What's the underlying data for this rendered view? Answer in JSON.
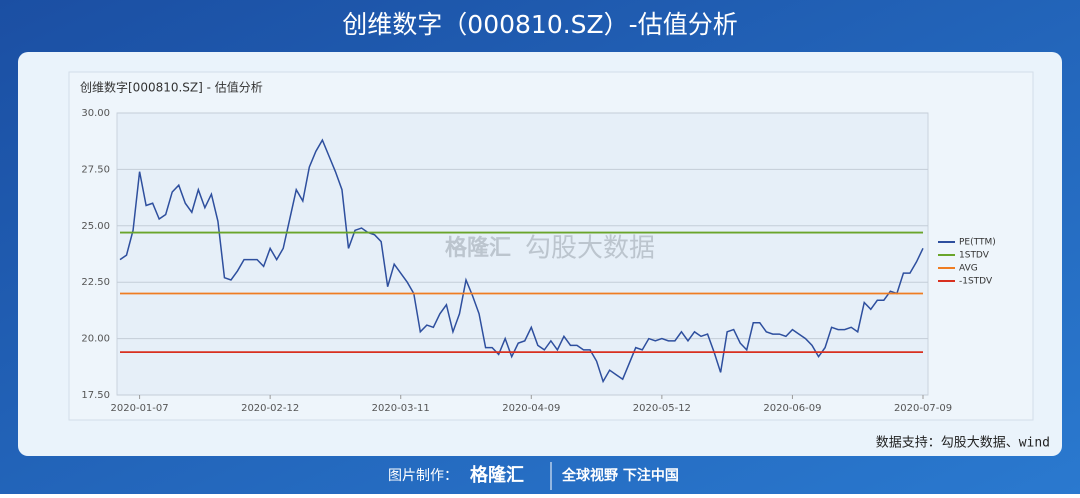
{
  "page_title": "创维数字（000810.SZ）-估值分析",
  "source": "数据支持：勾股大数据、wind",
  "watermark": [
    "格隆汇",
    "勾股大数据"
  ],
  "footer": {
    "label": "图片制作：",
    "brand": "格隆汇",
    "slogan": "全球视野 下注中国"
  },
  "chart_data": {
    "type": "line",
    "title": "创维数字[000810.SZ] - 估值分析",
    "categories": [
      null,
      null,
      null,
      "2020-01-07",
      null,
      null,
      null,
      null,
      null,
      null,
      null,
      null,
      null,
      null,
      null,
      null,
      null,
      null,
      null,
      null,
      null,
      null,
      null,
      "2020-02-12",
      null,
      null,
      null,
      null,
      null,
      null,
      null,
      null,
      null,
      null,
      null,
      null,
      null,
      null,
      null,
      null,
      null,
      null,
      null,
      "2020-03-11",
      null,
      null,
      null,
      null,
      null,
      null,
      null,
      null,
      null,
      null,
      null,
      null,
      null,
      null,
      null,
      null,
      null,
      null,
      null,
      "2020-04-09",
      null,
      null,
      null,
      null,
      null,
      null,
      null,
      null,
      null,
      null,
      null,
      null,
      null,
      null,
      null,
      null,
      null,
      null,
      null,
      "2020-05-12",
      null,
      null,
      null,
      null,
      null,
      null,
      null,
      null,
      null,
      null,
      null,
      null,
      null,
      null,
      null,
      null,
      null,
      null,
      null,
      "2020-06-09",
      null,
      null,
      null,
      null,
      null,
      null,
      null,
      null,
      null,
      null,
      null,
      null,
      null,
      null,
      null,
      null,
      null,
      null,
      null,
      "2020-07-09"
    ],
    "series": [
      {
        "name": "PE(TTM)",
        "color": "#2e4f9e",
        "values": [
          23.5,
          23.7,
          24.8,
          27.4,
          25.9,
          26.0,
          25.3,
          25.5,
          26.5,
          26.8,
          26.0,
          25.6,
          26.6,
          25.8,
          26.4,
          25.2,
          22.7,
          22.6,
          23.0,
          23.5,
          23.5,
          23.5,
          23.2,
          24.0,
          23.5,
          24.0,
          25.3,
          26.6,
          26.1,
          27.6,
          28.3,
          28.8,
          28.1,
          27.4,
          26.6,
          24.0,
          24.8,
          24.9,
          24.7,
          24.6,
          24.3,
          22.3,
          23.3,
          22.9,
          22.5,
          22.0,
          20.3,
          20.6,
          20.5,
          21.1,
          21.5,
          20.3,
          21.1,
          22.6,
          21.9,
          21.1,
          19.6,
          19.6,
          19.3,
          20.0,
          19.2,
          19.8,
          19.9,
          20.5,
          19.7,
          19.5,
          19.9,
          19.5,
          20.1,
          19.7,
          19.7,
          19.5,
          19.5,
          19.0,
          18.1,
          18.6,
          18.4,
          18.2,
          18.9,
          19.6,
          19.5,
          20.0,
          19.9,
          20.0,
          19.9,
          19.9,
          20.3,
          19.9,
          20.3,
          20.1,
          20.2,
          19.4,
          18.5,
          20.3,
          20.4,
          19.8,
          19.5,
          20.7,
          20.7,
          20.3,
          20.2,
          20.2,
          20.1,
          20.4,
          20.2,
          20.0,
          19.7,
          19.2,
          19.6,
          20.5,
          20.4,
          20.4,
          20.5,
          20.3,
          21.6,
          21.3,
          21.7,
          21.7,
          22.1,
          22.0,
          22.9,
          22.9,
          23.4,
          24.0
        ]
      },
      {
        "name": "1STDV",
        "color": "#6aa52b",
        "value": 24.7
      },
      {
        "name": "AVG",
        "color": "#ef7d22",
        "value": 22.0
      },
      {
        "name": "-1STDV",
        "color": "#d8301f",
        "value": 19.4
      }
    ],
    "ylim": [
      17.5,
      30
    ],
    "yticks": [
      {
        "value": 17.5,
        "label": "17.50"
      },
      {
        "value": 20,
        "label": "20.00"
      },
      {
        "value": 22.5,
        "label": "22.50"
      },
      {
        "value": 25,
        "label": "25.00"
      },
      {
        "value": 27.5,
        "label": "27.50"
      },
      {
        "value": 30,
        "label": "30.00"
      }
    ],
    "grid": true,
    "legend": "right"
  }
}
